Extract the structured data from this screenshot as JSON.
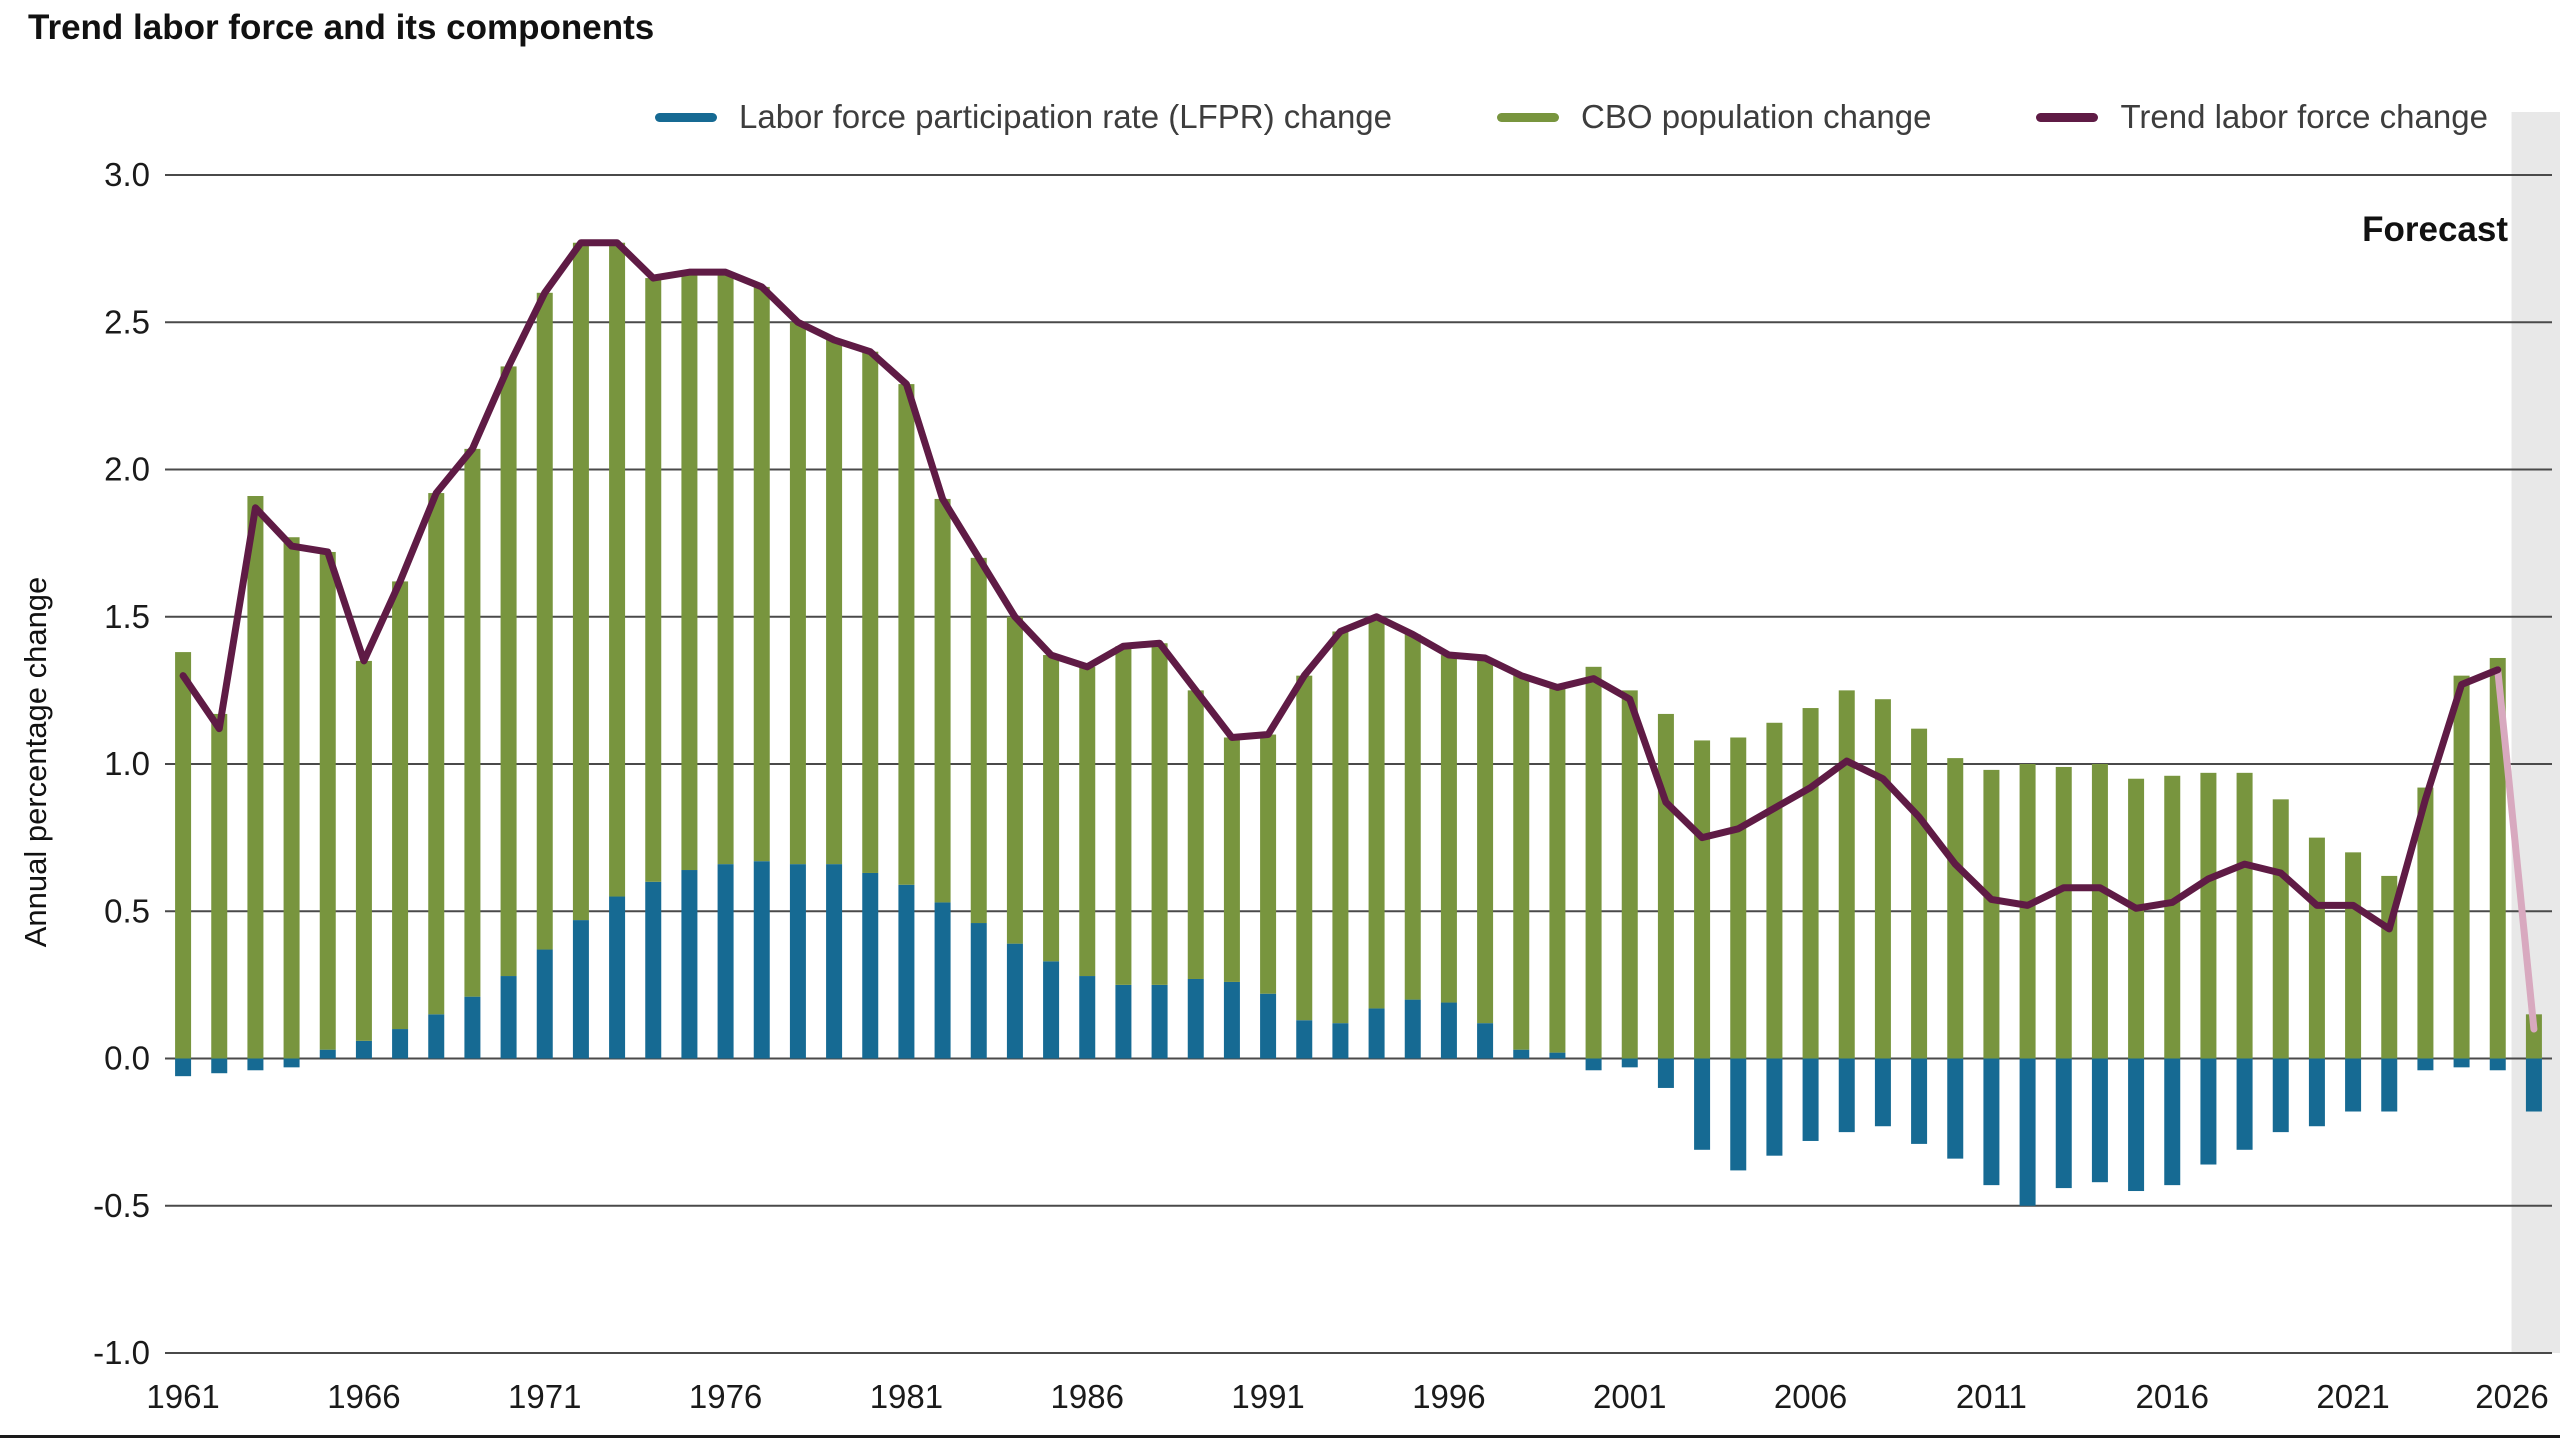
{
  "title": "Trend labor force and its components",
  "legend": {
    "items": [
      {
        "label": "Labor force participation rate (LFPR) change",
        "color": "#166a93"
      },
      {
        "label": "CBO population change",
        "color": "#78953e"
      },
      {
        "label": "Trend labor force change",
        "color": "#5f1b45"
      }
    ]
  },
  "y_axis": {
    "label": "Annual percentage change",
    "ticks": [
      "3.0",
      "2.5",
      "2.0",
      "1.5",
      "1.0",
      "0.5",
      "0.0",
      "-0.5",
      "-1.0"
    ],
    "min": -1.0,
    "max": 3.0
  },
  "x_axis": {
    "tick_years": [
      1961,
      1966,
      1971,
      1976,
      1981,
      1986,
      1991,
      1996,
      2001,
      2006,
      2011,
      2016,
      2021,
      2026
    ]
  },
  "forecast": {
    "label": "Forecast"
  },
  "chart_data": {
    "type": "bar",
    "subtype": "stacked-bars-with-line-overlay",
    "title": "Trend labor force and its components",
    "xlabel": "",
    "ylabel": "Annual percentage change",
    "ylim": [
      -1.0,
      3.0
    ],
    "grid": true,
    "legend_position": "top",
    "x": [
      1961,
      1962,
      1963,
      1964,
      1965,
      1966,
      1967,
      1968,
      1969,
      1970,
      1971,
      1972,
      1973,
      1974,
      1975,
      1976,
      1977,
      1978,
      1979,
      1980,
      1981,
      1982,
      1983,
      1984,
      1985,
      1986,
      1987,
      1988,
      1989,
      1990,
      1991,
      1992,
      1993,
      1994,
      1995,
      1996,
      1997,
      1998,
      1999,
      2000,
      2001,
      2002,
      2003,
      2004,
      2005,
      2006,
      2007,
      2008,
      2009,
      2010,
      2011,
      2012,
      2013,
      2014,
      2015,
      2016,
      2017,
      2018,
      2019,
      2020,
      2021,
      2022,
      2023,
      2024,
      2025,
      2026
    ],
    "series": [
      {
        "name": "Labor force participation rate (LFPR) change",
        "render": "bar",
        "stack": true,
        "color": "#166a93",
        "values": [
          -0.06,
          -0.05,
          -0.04,
          -0.03,
          0.03,
          0.06,
          0.1,
          0.15,
          0.21,
          0.28,
          0.37,
          0.47,
          0.55,
          0.6,
          0.64,
          0.66,
          0.67,
          0.66,
          0.66,
          0.63,
          0.59,
          0.53,
          0.46,
          0.39,
          0.33,
          0.28,
          0.25,
          0.25,
          0.27,
          0.26,
          0.22,
          0.13,
          0.12,
          0.17,
          0.2,
          0.19,
          0.12,
          0.03,
          0.02,
          -0.04,
          -0.03,
          -0.1,
          -0.31,
          -0.38,
          -0.33,
          -0.28,
          -0.25,
          -0.23,
          -0.29,
          -0.34,
          -0.43,
          -0.5,
          -0.44,
          -0.42,
          -0.45,
          -0.43,
          -0.36,
          -0.31,
          -0.25,
          -0.23,
          -0.18,
          -0.18,
          -0.04,
          -0.03,
          -0.04,
          -0.18
        ]
      },
      {
        "name": "CBO population change",
        "render": "bar",
        "stack": true,
        "color": "#78953e",
        "values": [
          1.38,
          1.17,
          1.91,
          1.77,
          1.69,
          1.29,
          1.52,
          1.77,
          1.86,
          2.07,
          2.23,
          2.3,
          2.22,
          2.05,
          2.03,
          2.01,
          1.95,
          1.84,
          1.78,
          1.77,
          1.7,
          1.37,
          1.24,
          1.11,
          1.04,
          1.05,
          1.15,
          1.16,
          0.98,
          0.83,
          0.88,
          1.17,
          1.33,
          1.33,
          1.24,
          1.18,
          1.24,
          1.27,
          1.24,
          1.33,
          1.25,
          1.17,
          1.08,
          1.09,
          1.14,
          1.19,
          1.25,
          1.22,
          1.12,
          1.02,
          0.98,
          1.0,
          0.99,
          1.0,
          0.95,
          0.96,
          0.97,
          0.97,
          0.88,
          0.75,
          0.7,
          0.62,
          0.92,
          1.3,
          1.36,
          0.15
        ]
      },
      {
        "name": "Trend labor force change",
        "render": "line",
        "color": "#5f1b45",
        "forecast_color": "#d8a9bf",
        "values": [
          1.3,
          1.12,
          1.87,
          1.74,
          1.72,
          1.35,
          1.62,
          1.92,
          2.07,
          2.35,
          2.6,
          2.77,
          2.77,
          2.65,
          2.67,
          2.67,
          2.62,
          2.5,
          2.44,
          2.4,
          2.29,
          1.9,
          1.7,
          1.5,
          1.37,
          1.33,
          1.4,
          1.41,
          1.25,
          1.09,
          1.1,
          1.3,
          1.45,
          1.5,
          1.44,
          1.37,
          1.36,
          1.3,
          1.26,
          1.29,
          1.22,
          0.87,
          0.75,
          0.78,
          0.85,
          0.92,
          1.01,
          0.95,
          0.82,
          0.66,
          0.54,
          0.52,
          0.58,
          0.58,
          0.51,
          0.53,
          0.61,
          0.66,
          0.63,
          0.52,
          0.52,
          0.44,
          0.88,
          1.27,
          1.32,
          0.1
        ]
      }
    ],
    "forecast_band": {
      "label": "Forecast",
      "years": [
        2026
      ],
      "color": "#e8e8e8"
    }
  }
}
